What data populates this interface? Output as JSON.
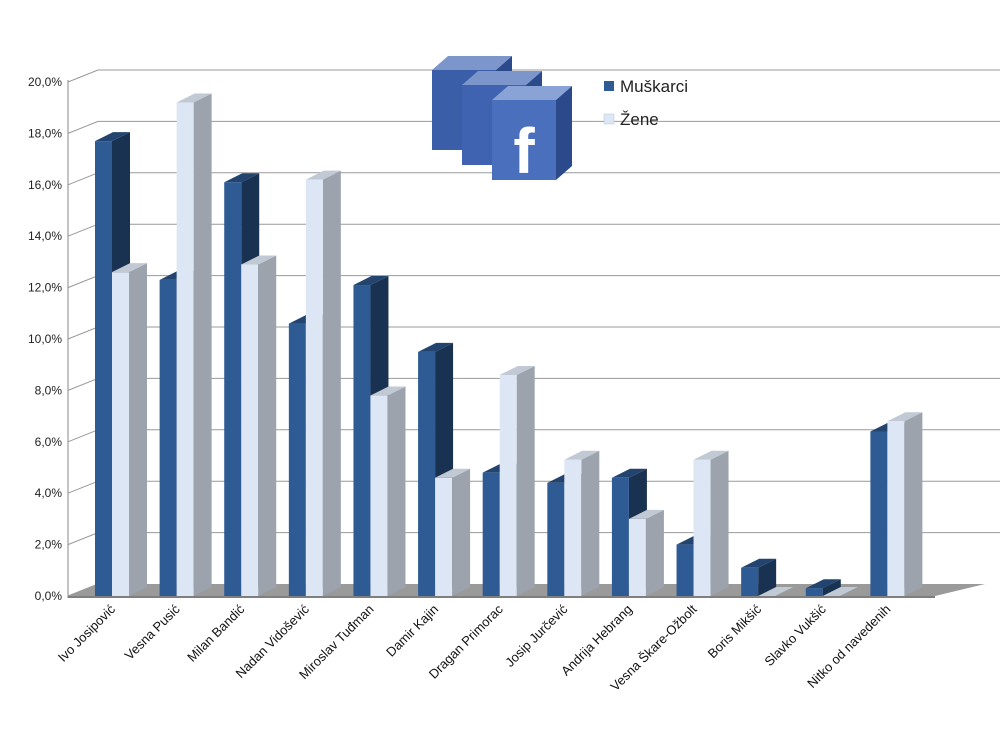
{
  "chart_data": {
    "type": "bar",
    "categories": [
      "Ivo Josipović",
      "Vesna Pusić",
      "Milan Bandić",
      "Nadan Vidošević",
      "Miroslav Tuđman",
      "Damir Kajin",
      "Dragan Primorac",
      "Josip Jurčević",
      "Andrija Hebrang",
      "Vesna Škare-Ožbolt",
      "Boris Mikšić",
      "Slavko Vukšić",
      "Nitko od navedenih"
    ],
    "series": [
      {
        "name": "Muškarci",
        "values": [
          17.7,
          12.3,
          16.1,
          10.6,
          12.1,
          9.5,
          4.8,
          4.4,
          4.6,
          2.0,
          1.1,
          0.3,
          6.4
        ],
        "color": "#2f5b94"
      },
      {
        "name": "Žene",
        "values": [
          12.6,
          19.2,
          12.9,
          16.2,
          7.8,
          4.6,
          8.6,
          5.3,
          3.0,
          5.3,
          0.0,
          0.0,
          6.8
        ],
        "color": "#dce6f4"
      }
    ],
    "yticks": [
      "0,0%",
      "2,0%",
      "4,0%",
      "6,0%",
      "8,0%",
      "10,0%",
      "12,0%",
      "14,0%",
      "16,0%",
      "18,0%",
      "20,0%"
    ],
    "ylim": [
      0,
      20
    ],
    "grid": true,
    "legend_position": "top-center",
    "logo": "facebook-logo"
  }
}
